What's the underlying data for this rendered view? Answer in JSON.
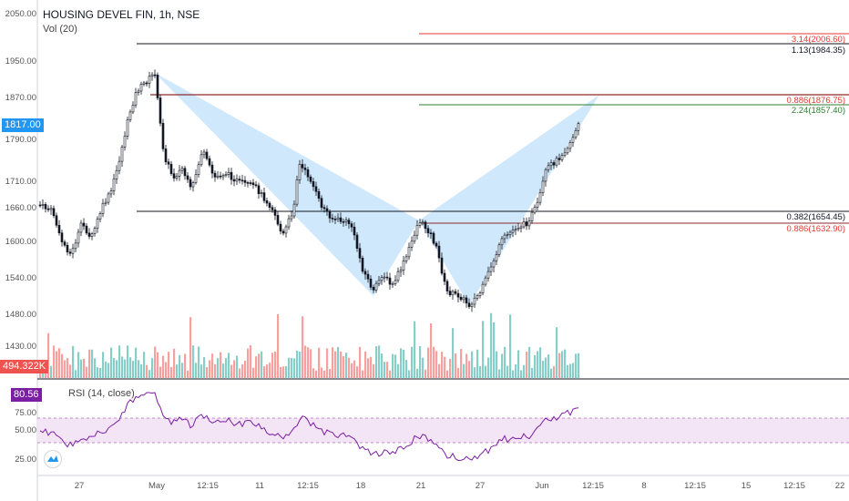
{
  "header": {
    "symbol_title": "HOUSING DEVEL FIN, 1h, NSE",
    "volume_indicator": "Vol (20)",
    "rsi_indicator": "RSI (14, close)"
  },
  "price_axis": {
    "ticks": [
      "2050.00",
      "1950.00",
      "1870.00",
      "1790.00",
      "1710.00",
      "1660.00",
      "1600.00",
      "1540.00",
      "1480.00",
      "1430.00"
    ],
    "current_price": "1817.00",
    "current_volume": "494.322K"
  },
  "rsi_axis": {
    "ticks": [
      "75.00",
      "50.00",
      "25.00"
    ],
    "current_rsi": "80.56"
  },
  "time_axis": {
    "ticks": [
      "27",
      "May",
      "12:15",
      "11",
      "12:15",
      "18",
      "21",
      "27",
      "Jun",
      "12:15",
      "8",
      "12:15",
      "15",
      "12:15",
      "22"
    ]
  },
  "fib_levels": [
    {
      "label": "3.14(2006.60)",
      "color": "#e53935"
    },
    {
      "label": "1.13(1984.35)",
      "color": "#131722"
    },
    {
      "label": "0.886(1876.75)",
      "color": "#e53935"
    },
    {
      "label": "2.24(1857.40)",
      "color": "#2e7d32"
    },
    {
      "label": "0.382(1654.45)",
      "color": "#131722"
    },
    {
      "label": "0.886(1632.90)",
      "color": "#e53935"
    }
  ],
  "colors": {
    "up": "#26a69a",
    "down": "#ef5350",
    "pattern_fill": "#bbdefb",
    "rsi_line": "#7b1fa2",
    "rsi_band": "#e1bee7",
    "price_badge": "#2196f3",
    "volume_badge": "#ef5350",
    "rsi_badge": "#7b1fa2"
  }
}
